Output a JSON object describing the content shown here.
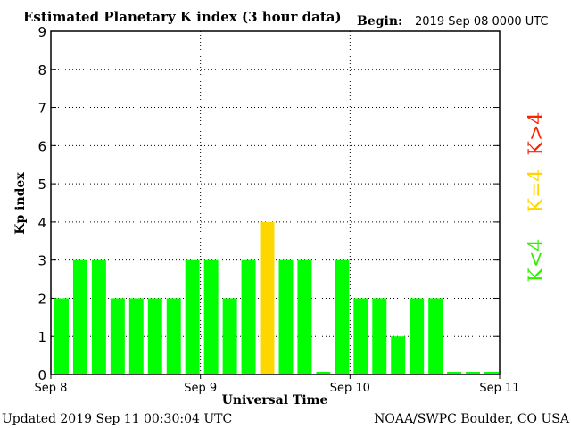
{
  "chart_data": {
    "type": "bar",
    "title": "Estimated Planetary K index (3 hour data)",
    "begin_label": "Begin:",
    "begin_value": "2019 Sep 08 0000 UTC",
    "ylabel": "Kp index",
    "xlabel": "Universal Time",
    "ylim": [
      0,
      9
    ],
    "yticks": [
      "0",
      "1",
      "2",
      "3",
      "4",
      "5",
      "6",
      "7",
      "8",
      "9"
    ],
    "day_labels": [
      "Sep 8",
      "Sep 9",
      "Sep 10",
      "Sep 11"
    ],
    "grid": true,
    "values": [
      2,
      3,
      3,
      2,
      2,
      2,
      2,
      3,
      3,
      2,
      3,
      4,
      3,
      3,
      0,
      3,
      2,
      2,
      1,
      2,
      2,
      0,
      0,
      0
    ],
    "colors": {
      "low": "#00ff00",
      "equal": "#ffd700",
      "high": "#ff2000"
    },
    "legend": {
      "high": "K>4",
      "equal": "K=4",
      "low": "K<4"
    },
    "updated": "Updated 2019 Sep 11 00:30:04 UTC",
    "credit": "NOAA/SWPC Boulder, CO USA"
  }
}
